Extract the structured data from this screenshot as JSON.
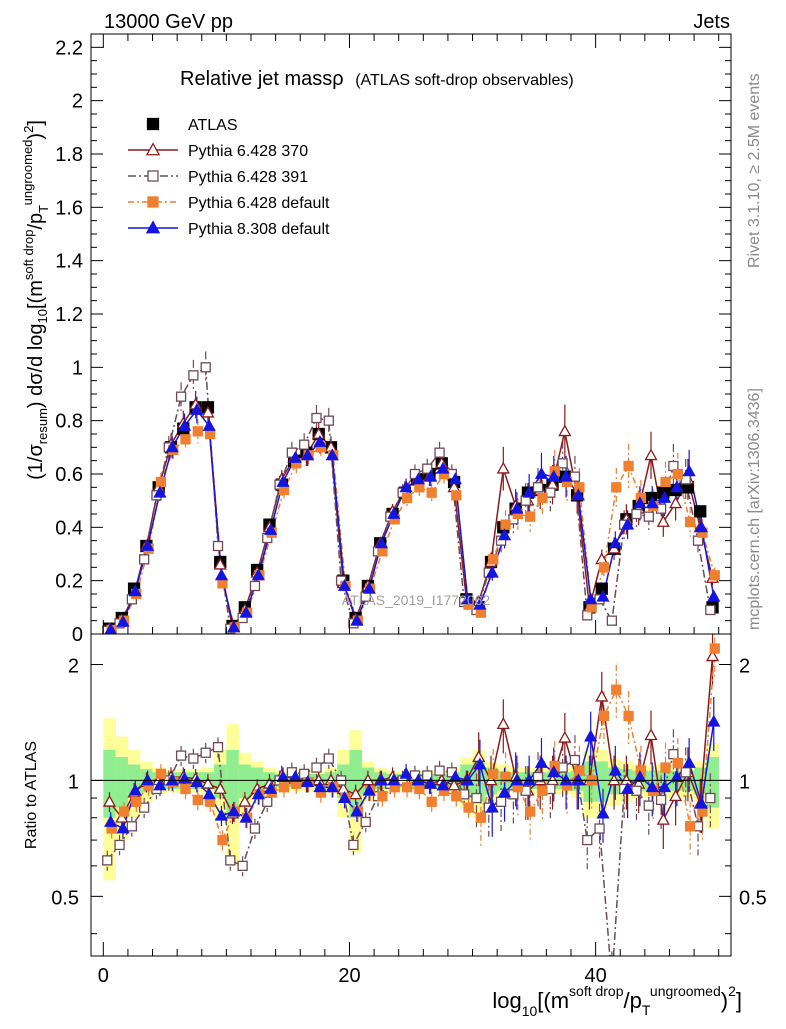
{
  "header": {
    "left": "13000 GeV pp",
    "right": "Jets"
  },
  "side_labels": {
    "rivet": "Rivet 3.1.10, ≥ 2.5M events",
    "mcplots": "mcplots.cern.ch [arXiv:1306.3436]"
  },
  "colors": {
    "atlas": "#000000",
    "p370": "#8b1a1a",
    "p391": "#6e4a57",
    "p6def": "#f07f30",
    "p8def": "#1515e0",
    "band_inner": "#90ee90",
    "band_outer": "#ffff99"
  },
  "chart_data": [
    {
      "type": "line",
      "title": "Relative jet massρ",
      "subtitle": "(ATLAS soft-drop observables)",
      "ylabel": "(1/σresum) dσ/d log10[(m soft drop / pT ungroomed)2]",
      "xlabel": "",
      "watermark": "ATLAS_2019_I1772062",
      "xlim": [
        -1,
        51
      ],
      "ylim": [
        0,
        2.25
      ],
      "yticks": [
        0,
        0.2,
        0.4,
        0.6,
        0.8,
        1,
        1.2,
        1.4,
        1.6,
        1.8,
        2,
        2.2
      ],
      "legend_position": "top-left",
      "legend": [
        "ATLAS",
        "Pythia 6.428 370",
        "Pythia 6.428 391",
        "Pythia 6.428 default",
        "Pythia 8.308 default"
      ],
      "x": [
        0.5,
        1.5,
        2.5,
        3.5,
        4.5,
        5.5,
        6.5,
        7.5,
        8.5,
        9.5,
        10.5,
        11.5,
        12.5,
        13.5,
        14.5,
        15.5,
        16.5,
        17.5,
        18.5,
        19.5,
        20.5,
        21.5,
        22.5,
        23.5,
        24.5,
        25.5,
        26.5,
        27.5,
        28.5,
        29.5,
        30.5,
        31.5,
        32.5,
        33.5,
        34.5,
        35.5,
        36.5,
        37.5,
        38.5,
        39.5,
        40.5,
        41.5,
        42.5,
        43.5,
        44.5,
        45.5,
        46.5,
        47.5,
        48.5,
        49.5
      ],
      "series": [
        {
          "name": "ATLAS",
          "values": [
            0.02,
            0.06,
            0.17,
            0.33,
            0.55,
            0.7,
            0.77,
            0.85,
            0.85,
            0.27,
            0.03,
            0.1,
            0.24,
            0.41,
            0.56,
            0.65,
            0.68,
            0.75,
            0.7,
            0.2,
            0.06,
            0.18,
            0.34,
            0.45,
            0.53,
            0.58,
            0.6,
            0.64,
            0.57,
            0.13,
            0.1,
            0.27,
            0.4,
            0.47,
            0.53,
            0.54,
            0.56,
            0.59,
            0.52,
            0.1,
            0.17,
            0.32,
            0.43,
            0.48,
            0.51,
            0.53,
            0.54,
            0.55,
            0.46,
            0.1
          ]
        },
        {
          "name": "Pythia 6.428 370",
          "values": [
            0.018,
            0.05,
            0.15,
            0.33,
            0.55,
            0.71,
            0.79,
            0.86,
            0.83,
            0.26,
            0.025,
            0.09,
            0.23,
            0.4,
            0.58,
            0.66,
            0.67,
            0.75,
            0.7,
            0.19,
            0.055,
            0.18,
            0.34,
            0.46,
            0.54,
            0.58,
            0.59,
            0.64,
            0.55,
            0.13,
            0.12,
            0.27,
            0.62,
            0.48,
            0.5,
            0.54,
            0.56,
            0.76,
            0.52,
            0.1,
            0.28,
            0.32,
            0.43,
            0.47,
            0.67,
            0.42,
            0.49,
            0.58,
            0.4,
            0.21
          ]
        },
        {
          "name": "Pythia 6.428 391",
          "values": [
            0.012,
            0.04,
            0.13,
            0.28,
            0.52,
            0.7,
            0.89,
            0.97,
            1.0,
            0.33,
            0.02,
            0.06,
            0.18,
            0.36,
            0.56,
            0.68,
            0.71,
            0.81,
            0.8,
            0.2,
            0.04,
            0.14,
            0.31,
            0.44,
            0.53,
            0.6,
            0.62,
            0.68,
            0.6,
            0.12,
            0.09,
            0.23,
            0.35,
            0.43,
            0.5,
            0.55,
            0.53,
            0.64,
            0.59,
            0.07,
            0.13,
            0.05,
            0.41,
            0.45,
            0.44,
            0.47,
            0.63,
            0.58,
            0.35,
            0.09
          ]
        },
        {
          "name": "Pythia 6.428 default",
          "values": [
            0.015,
            0.05,
            0.15,
            0.32,
            0.57,
            0.69,
            0.73,
            0.76,
            0.75,
            0.19,
            0.025,
            0.08,
            0.22,
            0.38,
            0.54,
            0.64,
            0.67,
            0.7,
            0.67,
            0.18,
            0.05,
            0.17,
            0.31,
            0.43,
            0.51,
            0.55,
            0.53,
            0.6,
            0.52,
            0.11,
            0.08,
            0.28,
            0.41,
            0.45,
            0.44,
            0.51,
            0.61,
            0.57,
            0.55,
            0.1,
            0.25,
            0.55,
            0.63,
            0.51,
            0.48,
            0.57,
            0.6,
            0.42,
            0.38,
            0.22
          ]
        },
        {
          "name": "Pythia 8.308 default",
          "values": [
            0.016,
            0.045,
            0.16,
            0.33,
            0.53,
            0.7,
            0.78,
            0.84,
            0.78,
            0.22,
            0.025,
            0.08,
            0.22,
            0.39,
            0.57,
            0.66,
            0.67,
            0.72,
            0.67,
            0.18,
            0.05,
            0.17,
            0.34,
            0.45,
            0.55,
            0.58,
            0.59,
            0.62,
            0.58,
            0.13,
            0.11,
            0.23,
            0.37,
            0.47,
            0.53,
            0.6,
            0.59,
            0.59,
            0.52,
            0.13,
            0.14,
            0.34,
            0.41,
            0.49,
            0.49,
            0.51,
            0.55,
            0.61,
            0.4,
            0.14
          ]
        }
      ]
    },
    {
      "type": "line",
      "ylabel": "Ratio to ATLAS",
      "xlabel": "log10[(m soft drop / pT ungroomed)2]",
      "xlim": [
        -1,
        51
      ],
      "ylim": [
        0.35,
        2.4
      ],
      "log_y": true,
      "yticks": [
        0.5,
        1,
        2
      ],
      "xticks": [
        0,
        20,
        40
      ],
      "reference_line": 1,
      "x": [
        0.5,
        1.5,
        2.5,
        3.5,
        4.5,
        5.5,
        6.5,
        7.5,
        8.5,
        9.5,
        10.5,
        11.5,
        12.5,
        13.5,
        14.5,
        15.5,
        16.5,
        17.5,
        18.5,
        19.5,
        20.5,
        21.5,
        22.5,
        23.5,
        24.5,
        25.5,
        26.5,
        27.5,
        28.5,
        29.5,
        30.5,
        31.5,
        32.5,
        33.5,
        34.5,
        35.5,
        36.5,
        37.5,
        38.5,
        39.5,
        40.5,
        41.5,
        42.5,
        43.5,
        44.5,
        45.5,
        46.5,
        47.5,
        48.5,
        49.5
      ],
      "uncertainty_band_inner": [
        0.2,
        0.15,
        0.1,
        0.07,
        0.05,
        0.05,
        0.05,
        0.05,
        0.05,
        0.1,
        0.2,
        0.1,
        0.08,
        0.05,
        0.04,
        0.04,
        0.04,
        0.04,
        0.05,
        0.1,
        0.2,
        0.08,
        0.05,
        0.04,
        0.04,
        0.04,
        0.04,
        0.04,
        0.05,
        0.1,
        0.12,
        0.08,
        0.06,
        0.05,
        0.05,
        0.05,
        0.05,
        0.05,
        0.06,
        0.12,
        0.12,
        0.08,
        0.07,
        0.06,
        0.06,
        0.06,
        0.06,
        0.06,
        0.08,
        0.15
      ],
      "uncertainty_band_outer": [
        0.45,
        0.3,
        0.2,
        0.12,
        0.08,
        0.07,
        0.07,
        0.07,
        0.08,
        0.2,
        0.4,
        0.18,
        0.12,
        0.08,
        0.06,
        0.06,
        0.06,
        0.06,
        0.08,
        0.2,
        0.35,
        0.12,
        0.08,
        0.06,
        0.06,
        0.06,
        0.06,
        0.06,
        0.08,
        0.15,
        0.2,
        0.12,
        0.1,
        0.08,
        0.08,
        0.08,
        0.08,
        0.08,
        0.1,
        0.2,
        0.2,
        0.14,
        0.12,
        0.1,
        0.1,
        0.1,
        0.1,
        0.1,
        0.12,
        0.25
      ],
      "series": [
        {
          "name": "Pythia 6.428 370",
          "values": [
            0.88,
            0.8,
            0.93,
            0.99,
            1.0,
            1.02,
            1.02,
            1.01,
            0.98,
            0.95,
            0.82,
            0.88,
            0.95,
            0.98,
            1.03,
            1.01,
            0.99,
            1.0,
            1.0,
            0.95,
            0.92,
            1.0,
            1.0,
            1.02,
            1.01,
            1.0,
            0.98,
            1.0,
            0.97,
            1.0,
            1.15,
            1.0,
            1.4,
            1.02,
            0.94,
            1.0,
            1.0,
            1.29,
            1.0,
            1.0,
            1.65,
            1.0,
            1.0,
            0.98,
            1.31,
            0.79,
            0.91,
            1.05,
            0.87,
            2.1
          ]
        },
        {
          "name": "Pythia 6.428 391",
          "values": [
            0.62,
            0.68,
            0.76,
            0.85,
            0.95,
            1.0,
            1.16,
            1.14,
            1.18,
            1.22,
            0.62,
            0.6,
            0.75,
            0.88,
            1.0,
            1.05,
            1.04,
            1.08,
            1.14,
            1.0,
            0.68,
            0.78,
            0.91,
            0.98,
            1.0,
            1.03,
            1.03,
            1.06,
            1.05,
            0.92,
            0.9,
            0.85,
            0.88,
            0.92,
            0.94,
            1.02,
            0.95,
            1.08,
            1.13,
            0.7,
            0.75,
            0.3,
            0.95,
            0.94,
            0.86,
            0.89,
            1.17,
            1.05,
            0.76,
            0.9
          ]
        },
        {
          "name": "Pythia 6.428 default",
          "values": [
            0.75,
            0.83,
            0.88,
            0.97,
            1.04,
            0.99,
            0.95,
            0.89,
            0.88,
            0.7,
            0.83,
            0.8,
            0.92,
            0.93,
            0.96,
            0.98,
            0.99,
            0.93,
            0.96,
            0.9,
            0.83,
            0.94,
            0.91,
            0.96,
            0.96,
            0.95,
            0.88,
            0.94,
            0.91,
            0.85,
            0.8,
            1.04,
            1.02,
            0.96,
            0.83,
            0.94,
            1.09,
            0.97,
            1.06,
            1.0,
            1.47,
            1.72,
            1.47,
            1.06,
            0.94,
            1.08,
            1.11,
            0.76,
            0.83,
            2.2
          ]
        },
        {
          "name": "Pythia 8.308 default",
          "values": [
            0.78,
            0.75,
            0.94,
            1.0,
            0.97,
            1.0,
            1.01,
            0.99,
            0.92,
            0.81,
            0.83,
            0.8,
            0.92,
            0.95,
            1.02,
            1.02,
            0.99,
            0.96,
            0.96,
            0.9,
            0.83,
            0.94,
            1.0,
            1.0,
            1.04,
            1.0,
            0.98,
            0.97,
            1.02,
            1.0,
            1.1,
            0.85,
            0.93,
            1.0,
            1.0,
            1.11,
            1.05,
            1.0,
            1.0,
            1.3,
            0.82,
            1.06,
            0.95,
            1.02,
            0.96,
            0.96,
            1.02,
            1.11,
            0.87,
            1.42
          ]
        }
      ]
    }
  ]
}
